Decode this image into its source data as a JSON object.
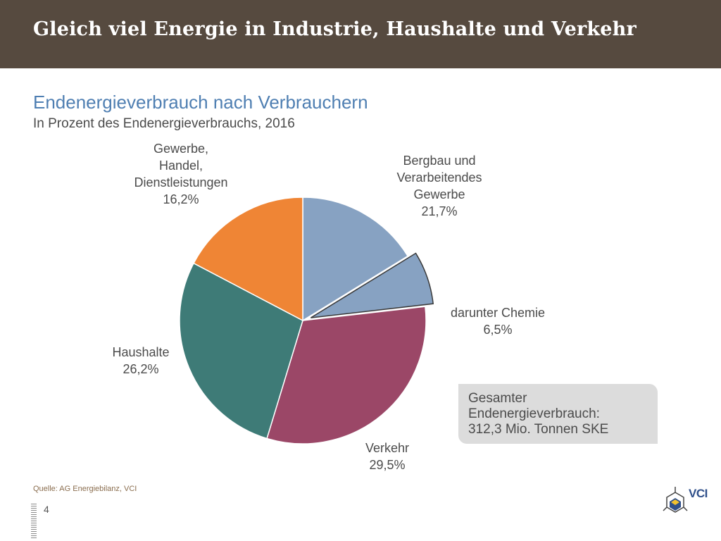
{
  "header": {
    "title": "Gleich viel Energie in Industrie, Haushalte und Verkehr"
  },
  "chart_data": {
    "type": "pie",
    "title": "Endenergieverbrauch nach Verbrauchern",
    "subtitle": "In Prozent des Endenergieverbrauchs, 2016",
    "slices": [
      {
        "label_lines": [
          "Bergbau und",
          "Verarbeitendes",
          "Gewerbe"
        ],
        "value_label": "21,7%",
        "value": 21.7,
        "color": "#87a2c2"
      },
      {
        "label_lines": [
          "darunter Chemie"
        ],
        "value_label": "6,5%",
        "value": 6.5,
        "color": "#87a2c2",
        "exploded": true,
        "part_of": "Bergbau und Verarbeitendes Gewerbe"
      },
      {
        "label_lines": [
          "Verkehr"
        ],
        "value_label": "29,5%",
        "value": 29.5,
        "color": "#9b4767"
      },
      {
        "label_lines": [
          "Haushalte"
        ],
        "value_label": "26,2%",
        "value": 26.2,
        "color": "#3e7b77"
      },
      {
        "label_lines": [
          "Gewerbe,",
          "Handel,",
          "Dienstleistungen"
        ],
        "value_label": "16,2%",
        "value": 16.2,
        "color": "#ef8535"
      }
    ],
    "total_box": {
      "lines": [
        "Gesamter",
        "Endenergieverbrauch:",
        "312,3 Mio. Tonnen SKE"
      ]
    }
  },
  "footer": {
    "source": "Quelle: AG Energiebilanz, VCI",
    "page_number": "4",
    "logo_text": "VCI"
  }
}
